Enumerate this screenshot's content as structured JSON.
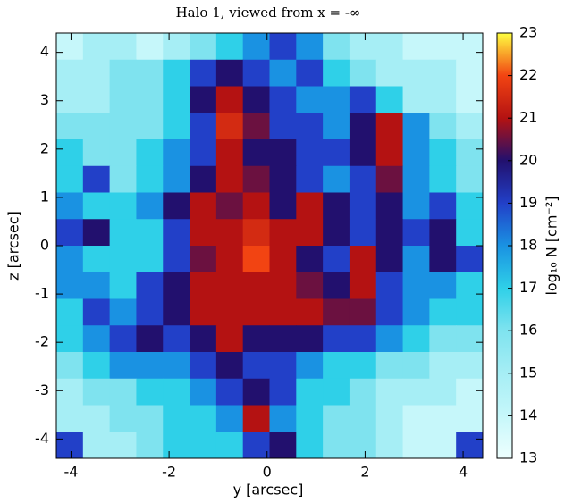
{
  "chart_data": {
    "type": "heatmap",
    "title": "Halo 1, viewed from x = -∞",
    "x_label": "y [arcsec]",
    "y_label": "z [arcsec]",
    "colorbar_label": "log₁₀ N  [cm⁻²]",
    "xlim": [
      -4.3,
      4.4
    ],
    "ylim": [
      -4.4,
      4.4
    ],
    "xticks": [
      -4,
      -2,
      0,
      2,
      4
    ],
    "yticks": [
      -4,
      -3,
      -2,
      -1,
      0,
      1,
      2,
      3,
      4
    ],
    "clim": [
      13,
      23
    ],
    "cticks": [
      13,
      14,
      15,
      16,
      17,
      18,
      19,
      20,
      21,
      22,
      23
    ],
    "colormap": [
      "#eefffe",
      "#c6f7fa",
      "#a6eef5",
      "#7fe3ef",
      "#2fd0e8",
      "#1a92e2",
      "#2240c8",
      "#22106e",
      "#b41212",
      "#f24412",
      "#ffff40"
    ],
    "z": [
      [
        14,
        15,
        15,
        14,
        15,
        16,
        17,
        18,
        19,
        18,
        16,
        15,
        15,
        14,
        14,
        14
      ],
      [
        15,
        15,
        16,
        16,
        17,
        19,
        20,
        19,
        18,
        19,
        17,
        16,
        15,
        15,
        15,
        14
      ],
      [
        15,
        15,
        16,
        16,
        17,
        20,
        21,
        20,
        19,
        18,
        18,
        19,
        17,
        15,
        15,
        14
      ],
      [
        16,
        16,
        16,
        16,
        17,
        19,
        21.5,
        20.5,
        19,
        19,
        18,
        20,
        21,
        18,
        16,
        15
      ],
      [
        17,
        16,
        16,
        17,
        18,
        19,
        21,
        20,
        20,
        19,
        19,
        20,
        21,
        18,
        17,
        16
      ],
      [
        17,
        19,
        16,
        17,
        18,
        20,
        21,
        20.5,
        20,
        19,
        18,
        19,
        20.5,
        18,
        17,
        16
      ],
      [
        18,
        17,
        17,
        18,
        20,
        21,
        20.5,
        21,
        20,
        21,
        20,
        19,
        20,
        18,
        19,
        17
      ],
      [
        19,
        20,
        17,
        17,
        19,
        21,
        21,
        21.5,
        21,
        21,
        20,
        19,
        20,
        19,
        20,
        17
      ],
      [
        18,
        17,
        17,
        17,
        19,
        20.5,
        21,
        22,
        21,
        20,
        19,
        21,
        20,
        18,
        20,
        19
      ],
      [
        18,
        18,
        17,
        19,
        20,
        21,
        21,
        21,
        21,
        20.5,
        20,
        21,
        19,
        18,
        18,
        17
      ],
      [
        17,
        19,
        18,
        19,
        20,
        21,
        21,
        21,
        21,
        21,
        20.5,
        20.5,
        19,
        18,
        17,
        17
      ],
      [
        17,
        18,
        19,
        20,
        19,
        20,
        21,
        20,
        20,
        20,
        19,
        19,
        18,
        17,
        16,
        16
      ],
      [
        16,
        17,
        18,
        18,
        18,
        19,
        20,
        19,
        19,
        18,
        17,
        17,
        16,
        16,
        15,
        15
      ],
      [
        15,
        16,
        16,
        17,
        17,
        18,
        19,
        20,
        19,
        17,
        17,
        16,
        15,
        15,
        15,
        14
      ],
      [
        15,
        15,
        16,
        16,
        17,
        17,
        18,
        21,
        18,
        17,
        16,
        16,
        15,
        14,
        14,
        14
      ],
      [
        19,
        15,
        15,
        16,
        17,
        17,
        17,
        19,
        20,
        17,
        16,
        16,
        15,
        14,
        14,
        19
      ]
    ]
  }
}
